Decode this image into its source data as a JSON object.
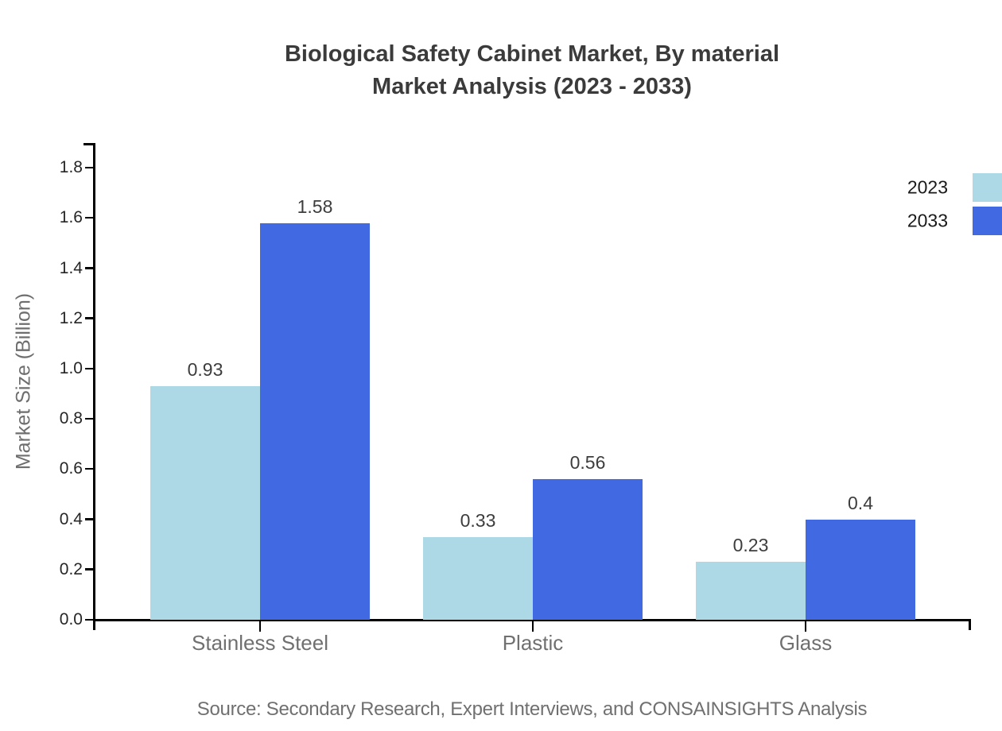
{
  "title": {
    "line1": "Biological Safety Cabinet Market, By material",
    "line2": "Market Analysis (2023 - 2033)"
  },
  "source": "Source: Secondary Research, Expert Interviews, and CONSAINSIGHTS Analysis",
  "chart_data": {
    "type": "bar",
    "title": "Biological Safety Cabinet Market, By material Market Analysis (2023 - 2033)",
    "categories": [
      "Stainless Steel",
      "Plastic",
      "Glass"
    ],
    "series": [
      {
        "name": "2023",
        "color": "#ADD8E6",
        "values": [
          0.93,
          0.33,
          0.23
        ],
        "labels": [
          "0.93",
          "0.33",
          "0.23"
        ]
      },
      {
        "name": "2033",
        "color": "#4169E1",
        "values": [
          1.58,
          0.56,
          0.4
        ],
        "labels": [
          "1.58",
          "0.56",
          "0.4"
        ]
      }
    ],
    "xlabel": "",
    "ylabel": "Market Size (Billion)",
    "ylim": [
      0,
      1.9
    ],
    "yticks": [
      0.0,
      0.2,
      0.4,
      0.6,
      0.8,
      1.0,
      1.2,
      1.4,
      1.6,
      1.8
    ],
    "grid": false,
    "legend_position": "top-right"
  }
}
